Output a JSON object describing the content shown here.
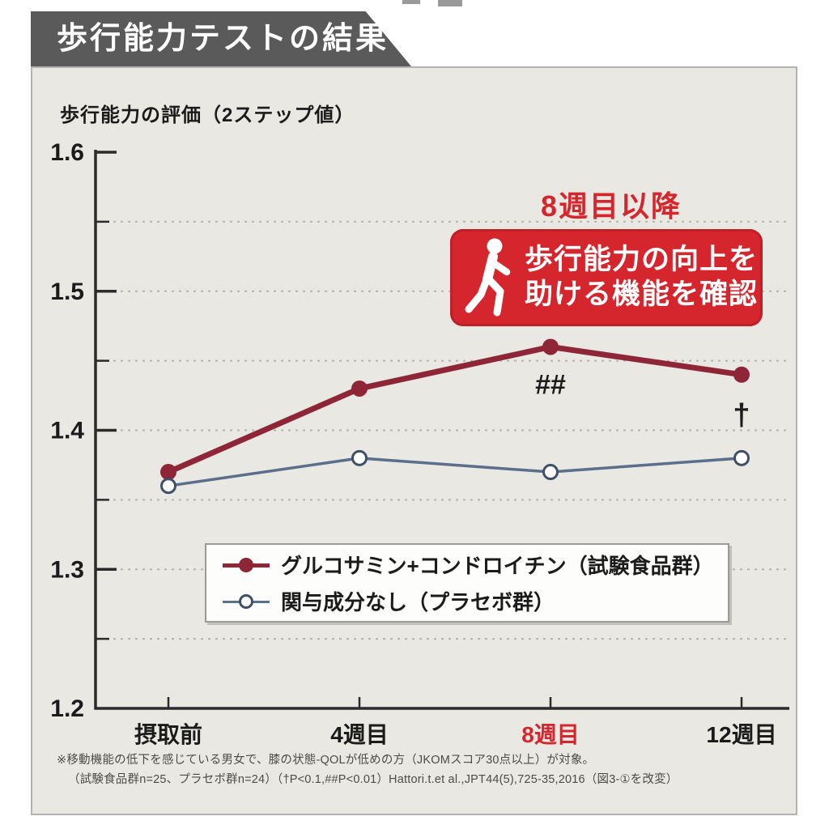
{
  "header": {
    "title": "歩行能力テストの結果"
  },
  "callout": {
    "heading": "8週目以降",
    "line1": "歩行能力の向上を",
    "line2": "助ける機能を確認"
  },
  "colors": {
    "accent_red": "#d6262d",
    "series_test": "#8e2637",
    "series_placebo": "#5b6e8a",
    "banner_gray": "#5a5a5a",
    "panel_bg": "#e9e8e3",
    "axis_dark": "#2b2b2b",
    "grid_dotted": "#b3b3af"
  },
  "footnotes": {
    "line1": "※移動機能の低下を感じている男女で、膝の状態-QOLが低めの方（JKOMスコア30点以上）が対象。",
    "line2": "（試験食品群n=25、プラセボ群n=24）（†P<0.1,##P<0.01）Hattori.t.et al.,JPT44(5),725-35,2016（図3-①を改変）"
  },
  "chart_data": {
    "type": "line",
    "title": "歩行能力テストの結果",
    "xlabel": "",
    "ylabel": "歩行能力の評価（2ステップ値）",
    "ylim": [
      1.2,
      1.6
    ],
    "grid": true,
    "legend_position": "lower center",
    "y_ticks": [
      {
        "label": "1.6",
        "value": 1.6
      },
      {
        "label": "1.5",
        "value": 1.5
      },
      {
        "label": "1.4",
        "value": 1.4
      },
      {
        "label": "1.3",
        "value": 1.3
      },
      {
        "label": "1.2",
        "value": 1.2
      }
    ],
    "minor_grid_values": [
      1.25,
      1.3,
      1.35,
      1.4,
      1.45,
      1.5,
      1.55
    ],
    "categories": [
      {
        "label": "摂取前",
        "highlight": false
      },
      {
        "label": "4週目",
        "highlight": false
      },
      {
        "label": "8週目",
        "highlight": true
      },
      {
        "label": "12週目",
        "highlight": false
      }
    ],
    "series": [
      {
        "label": "グルコサミン+コンドロイチン（試験食品群）",
        "color": "#8e2637",
        "marker": "filled",
        "line_width": 7,
        "values": [
          1.37,
          1.43,
          1.46,
          1.44
        ]
      },
      {
        "label": "関与成分なし（プラセボ群）",
        "color": "#5b6e8a",
        "marker": "open",
        "line_width": 3.5,
        "values": [
          1.36,
          1.38,
          1.37,
          1.38
        ]
      }
    ],
    "annotations": [
      {
        "text": "##",
        "series": 0,
        "index": 2,
        "dy": 58,
        "font_size": 34
      },
      {
        "text": "†",
        "series": 0,
        "index": 3,
        "dy": 62,
        "font_size": 38
      }
    ]
  }
}
